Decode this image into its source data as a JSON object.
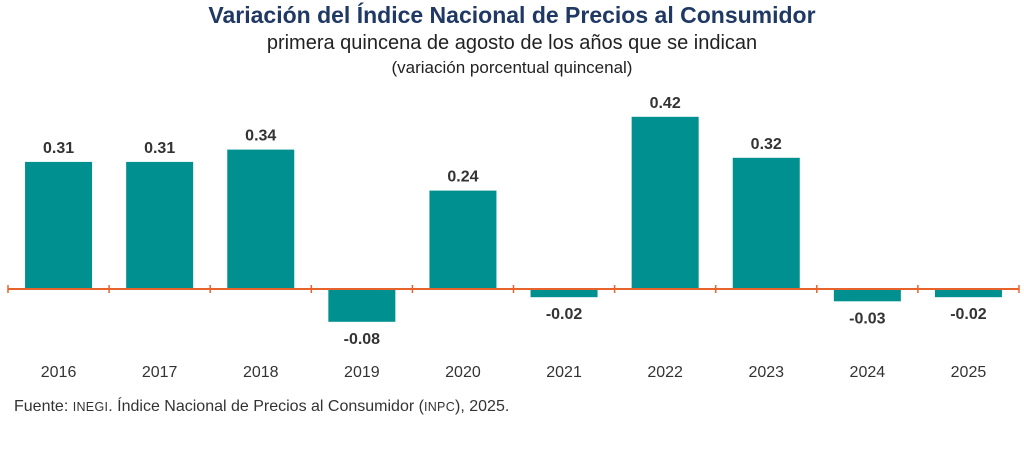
{
  "chart_data": {
    "type": "bar",
    "title": "Variación del Índice Nacional de Precios al Consumidor",
    "subtitle": "primera quincena de agosto de los años que se indican",
    "unit_label": "(variación porcentual quincenal)",
    "categories": [
      "2016",
      "2017",
      "2018",
      "2019",
      "2020",
      "2021",
      "2022",
      "2023",
      "2024",
      "2025"
    ],
    "values": [
      0.31,
      0.31,
      0.34,
      -0.08,
      0.24,
      -0.02,
      0.42,
      0.32,
      -0.03,
      -0.02
    ],
    "value_labels": [
      "0.31",
      "0.31",
      "0.34",
      "-0.08",
      "0.24",
      "-0.02",
      "0.42",
      "0.32",
      "-0.03",
      "-0.02"
    ],
    "xlabel": "",
    "ylabel": "",
    "grid": false,
    "colors": {
      "bar": "#009090",
      "axis": "#e8622c",
      "title": "#1f3864"
    }
  },
  "source": {
    "prefix": "Fuente: ",
    "org": "INEGI",
    "mid": ". Índice Nacional de Precios al Consumidor (",
    "abbr": "INPC",
    "suffix": "), 2025."
  }
}
